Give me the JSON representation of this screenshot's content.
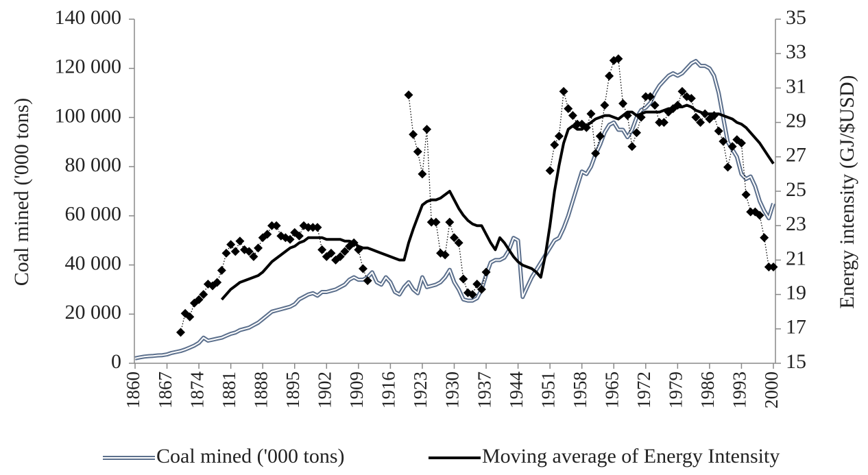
{
  "chart_data": {
    "type": "line",
    "x": [
      1860,
      1861,
      1862,
      1863,
      1864,
      1865,
      1866,
      1867,
      1868,
      1869,
      1870,
      1871,
      1872,
      1873,
      1874,
      1875,
      1876,
      1877,
      1878,
      1879,
      1880,
      1881,
      1882,
      1883,
      1884,
      1885,
      1886,
      1887,
      1888,
      1889,
      1890,
      1891,
      1892,
      1893,
      1894,
      1895,
      1896,
      1897,
      1898,
      1899,
      1900,
      1901,
      1902,
      1903,
      1904,
      1905,
      1906,
      1907,
      1908,
      1909,
      1910,
      1911,
      1912,
      1913,
      1914,
      1915,
      1916,
      1917,
      1918,
      1919,
      1920,
      1921,
      1922,
      1923,
      1924,
      1925,
      1926,
      1927,
      1928,
      1929,
      1930,
      1931,
      1932,
      1933,
      1934,
      1935,
      1936,
      1937,
      1938,
      1939,
      1940,
      1941,
      1942,
      1943,
      1944,
      1945,
      1946,
      1947,
      1948,
      1949,
      1950,
      1951,
      1952,
      1953,
      1954,
      1955,
      1956,
      1957,
      1958,
      1959,
      1960,
      1961,
      1962,
      1963,
      1964,
      1965,
      1966,
      1967,
      1968,
      1969,
      1970,
      1971,
      1972,
      1973,
      1974,
      1975,
      1976,
      1977,
      1978,
      1979,
      1980,
      1981,
      1982,
      1983,
      1984,
      1985,
      1986,
      1987,
      1988,
      1989,
      1990,
      1991,
      1992,
      1993,
      1994,
      1995,
      1996,
      1997,
      1998,
      1999,
      2000
    ],
    "xlim": [
      1860,
      2000
    ],
    "xticks": [
      1860,
      1867,
      1874,
      1881,
      1888,
      1895,
      1902,
      1909,
      1916,
      1923,
      1930,
      1937,
      1944,
      1951,
      1958,
      1965,
      1972,
      1979,
      1986,
      1993,
      2000
    ],
    "ylim": [
      0,
      140000
    ],
    "yticks": [
      {
        "value": 0,
        "label": "0"
      },
      {
        "value": 20000,
        "label": "20 000"
      },
      {
        "value": 40000,
        "label": "40 000"
      },
      {
        "value": 60000,
        "label": "60 000"
      },
      {
        "value": 80000,
        "label": "80 000"
      },
      {
        "value": 100000,
        "label": "100 000"
      },
      {
        "value": 120000,
        "label": "120 000"
      },
      {
        "value": 140000,
        "label": "140 000"
      }
    ],
    "y2lim": [
      15,
      35
    ],
    "y2ticks": [
      15,
      17,
      19,
      21,
      23,
      25,
      27,
      29,
      31,
      33,
      35
    ],
    "ylabel": "Coal mined ('000 tons)",
    "y2label": "Energy intensity (GJ/$USD)",
    "legend": "bottom",
    "series": [
      {
        "name": "Coal mined ('000 tons)",
        "color": "#5b6f8c",
        "mark": "double-line",
        "values": [
          2000,
          2400,
          2700,
          2900,
          3000,
          3200,
          3300,
          3600,
          4200,
          4600,
          5000,
          5600,
          6400,
          7200,
          8300,
          10400,
          9200,
          9600,
          10000,
          10400,
          11200,
          12000,
          12500,
          13500,
          14000,
          14500,
          15500,
          16500,
          18000,
          19500,
          21000,
          21500,
          22000,
          22500,
          23000,
          24000,
          26000,
          27000,
          28000,
          28500,
          27500,
          29000,
          29000,
          29500,
          30000,
          31000,
          32000,
          34000,
          35000,
          34000,
          34000,
          35000,
          37000,
          33000,
          32000,
          35000,
          33000,
          29000,
          28000,
          31000,
          33000,
          30000,
          28500,
          35000,
          31000,
          31500,
          32000,
          33000,
          35000,
          38000,
          33000,
          30000,
          26000,
          25500,
          25500,
          26500,
          30000,
          36000,
          41000,
          42000,
          42000,
          43000,
          46000,
          51000,
          50000,
          27000,
          31000,
          35000,
          38000,
          41000,
          44000,
          47000,
          50000,
          51000,
          55000,
          60000,
          66000,
          72000,
          78000,
          77000,
          80000,
          85000,
          89000,
          94000,
          97000,
          98000,
          95000,
          95000,
          92000,
          95000,
          100000,
          103000,
          104000,
          106000,
          110000,
          113000,
          115000,
          117000,
          118000,
          117000,
          118000,
          120000,
          122000,
          123000,
          121000,
          121000,
          120000,
          117000,
          110000,
          100000,
          90000,
          87000,
          84000,
          77000,
          75000,
          76000,
          72000,
          66000,
          62000,
          59000,
          65000
        ]
      },
      {
        "color": "#000000",
        "mark": "diamond-dotted",
        "axis": "y2",
        "values": [
          null,
          null,
          null,
          null,
          null,
          null,
          null,
          null,
          null,
          null,
          16.8,
          17.9,
          17.7,
          18.5,
          18.7,
          19.0,
          19.6,
          19.5,
          19.7,
          20.4,
          21.4,
          21.9,
          21.5,
          22.1,
          21.6,
          21.5,
          21.2,
          21.7,
          22.3,
          22.5,
          23.0,
          23.0,
          22.4,
          22.3,
          22.2,
          22.6,
          22.4,
          23.0,
          22.9,
          22.9,
          22.9,
          21.6,
          21.2,
          21.4,
          21.0,
          21.2,
          21.5,
          21.8,
          22.0,
          21.6,
          20.5,
          19.8,
          null,
          null,
          null,
          null,
          null,
          null,
          null,
          null,
          30.6,
          28.3,
          27.3,
          26.0,
          28.6,
          23.2,
          23.2,
          21.4,
          21.3,
          23.2,
          22.3,
          22.0,
          19.9,
          19.1,
          19.0,
          19.6,
          19.3,
          20.3,
          null,
          null,
          null,
          null,
          null,
          null,
          null,
          null,
          null,
          null,
          null,
          null,
          null,
          26.2,
          27.7,
          28.2,
          30.8,
          29.8,
          29.4,
          28.9,
          28.9,
          28.7,
          29.5,
          27.2,
          28.2,
          30.0,
          31.7,
          32.6,
          32.7,
          30.1,
          29.4,
          27.6,
          28.4,
          29.3,
          30.5,
          30.5,
          30.0,
          29.0,
          29.0,
          29.6,
          29.8,
          30.0,
          30.8,
          30.5,
          30.4,
          29.3,
          29.0,
          29.5,
          29.2,
          29.4,
          28.5,
          27.9,
          26.4,
          27.6,
          28.0,
          27.8,
          24.8,
          23.8,
          23.8,
          23.6,
          22.3,
          20.6,
          20.6
        ]
      },
      {
        "name": "Moving average of Energy Intensity",
        "color": "#000000",
        "mark": "line",
        "axis": "y2",
        "values": [
          null,
          null,
          null,
          null,
          null,
          null,
          null,
          null,
          null,
          null,
          null,
          null,
          null,
          null,
          null,
          null,
          null,
          null,
          null,
          18.7,
          19.0,
          19.3,
          19.5,
          19.7,
          19.8,
          19.9,
          20.0,
          20.1,
          20.3,
          20.6,
          20.9,
          21.1,
          21.3,
          21.5,
          21.7,
          21.8,
          22.0,
          22.1,
          22.3,
          22.3,
          22.3,
          22.3,
          22.2,
          22.2,
          22.2,
          22.2,
          22.1,
          22.1,
          22.0,
          21.8,
          21.7,
          21.7,
          21.6,
          21.5,
          21.4,
          21.3,
          21.2,
          21.1,
          21.0,
          21.0,
          22.0,
          22.8,
          23.5,
          24.2,
          24.4,
          24.5,
          24.5,
          24.6,
          24.8,
          25.0,
          24.5,
          24.0,
          23.6,
          23.3,
          23.1,
          23.0,
          23.0,
          22.5,
          22.0,
          21.6,
          22.3,
          22.0,
          21.6,
          21.2,
          20.9,
          20.7,
          20.6,
          20.5,
          20.3,
          20.0,
          21.3,
          23.0,
          25.0,
          26.5,
          27.8,
          28.6,
          28.8,
          28.6,
          28.6,
          28.8,
          29.0,
          29.2,
          29.3,
          29.4,
          29.4,
          29.3,
          29.2,
          29.4,
          29.6,
          29.6,
          29.4,
          29.5,
          29.6,
          29.6,
          29.6,
          29.6,
          29.7,
          29.8,
          29.8,
          29.9,
          29.9,
          30.0,
          29.9,
          29.7,
          29.6,
          29.5,
          29.5,
          29.5,
          29.5,
          29.4,
          29.3,
          29.2,
          29.0,
          28.9,
          28.7,
          28.4,
          28.1,
          27.8,
          27.4,
          27.0,
          26.6
        ]
      }
    ]
  }
}
